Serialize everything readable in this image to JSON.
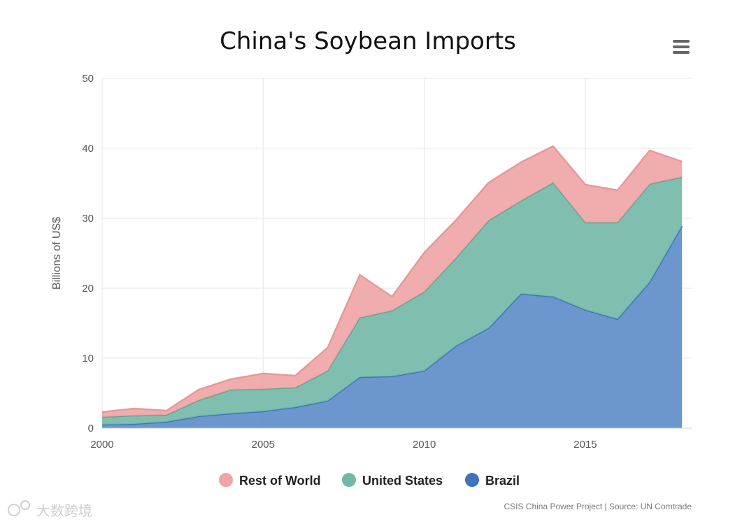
{
  "colors": {
    "rest_of_world": "#f0a4a4",
    "rest_of_world_line": "#e59a9a",
    "united_states": "#72b8a6",
    "united_states_line": "#5fa590",
    "brazil": "#5b8cc9",
    "brazil_line": "#3d74bb",
    "grid": "#e6e6e6",
    "menu_icon": "#666666"
  },
  "menu": {
    "icon": "hamburger-menu-icon"
  },
  "credits": "CSIS China Power Project | Source: UN Comtrade",
  "watermark": "大数跨境",
  "chart_data": {
    "type": "area",
    "stacked": true,
    "title": "China's Soybean Imports",
    "xlabel": "",
    "ylabel": "Billions of US$",
    "x": [
      2000,
      2001,
      2002,
      2003,
      2004,
      2005,
      2006,
      2007,
      2008,
      2009,
      2010,
      2011,
      2012,
      2013,
      2014,
      2015,
      2016,
      2017,
      2018
    ],
    "xlim": [
      2000,
      2018.3
    ],
    "ylim": [
      0,
      50
    ],
    "xticks": [
      "2000",
      "2005",
      "2010",
      "2015"
    ],
    "xtick_values": [
      2000,
      2005,
      2010,
      2015
    ],
    "yticks": [
      "0",
      "10",
      "20",
      "30",
      "40",
      "50"
    ],
    "ytick_values": [
      0,
      10,
      20,
      30,
      40,
      50
    ],
    "grid": true,
    "legend_position": "bottom",
    "series": [
      {
        "name": "Brazil",
        "values": [
          0.5,
          0.6,
          0.9,
          1.7,
          2.1,
          2.4,
          3.0,
          3.9,
          7.3,
          7.4,
          8.2,
          11.8,
          14.3,
          19.2,
          18.8,
          16.9,
          15.6,
          20.9,
          28.9
        ]
      },
      {
        "name": "United States",
        "values": [
          1.1,
          1.2,
          1.0,
          2.3,
          3.4,
          3.2,
          2.8,
          4.3,
          8.5,
          9.4,
          11.3,
          12.6,
          15.4,
          13.3,
          16.3,
          12.5,
          13.8,
          14.0,
          7.0
        ]
      },
      {
        "name": "Rest of World",
        "values": [
          0.7,
          1.0,
          0.6,
          1.5,
          1.5,
          2.2,
          1.7,
          3.3,
          6.1,
          2.0,
          5.6,
          5.4,
          5.4,
          5.5,
          5.2,
          5.4,
          4.6,
          4.8,
          2.2
        ]
      }
    ],
    "legend_order": [
      "Rest of World",
      "United States",
      "Brazil"
    ]
  }
}
